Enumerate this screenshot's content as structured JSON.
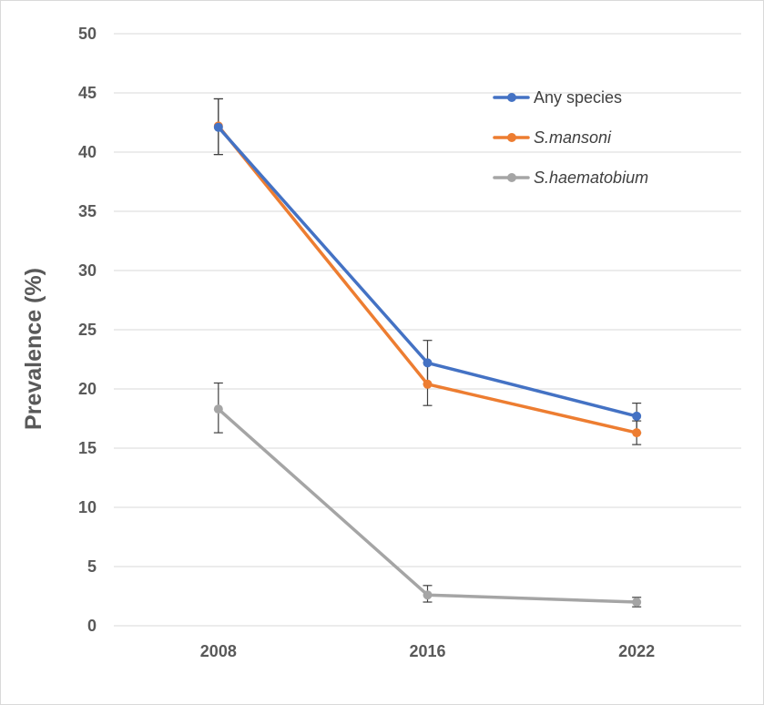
{
  "chart_data": {
    "type": "line",
    "title": "",
    "xlabel": "",
    "ylabel": "Prevalence (%)",
    "ylim": [
      0,
      50
    ],
    "ytick_step": 5,
    "categories": [
      "2008",
      "2016",
      "2022"
    ],
    "grid": true,
    "legend_position": "top-right",
    "series": [
      {
        "name": "Any species",
        "color": "#4472c4",
        "italic": false,
        "values": [
          42.1,
          22.2,
          17.7
        ],
        "error_low": [
          39.8,
          20.4,
          16.3
        ],
        "error_high": [
          44.5,
          24.1,
          18.8
        ]
      },
      {
        "name": "S.mansoni",
        "color": "#ed7d31",
        "italic": true,
        "values": [
          42.2,
          20.4,
          16.3
        ],
        "error_low": [
          39.8,
          18.6,
          15.3
        ],
        "error_high": [
          44.5,
          22.2,
          17.3
        ]
      },
      {
        "name": "S.haematobium",
        "color": "#a5a5a5",
        "italic": true,
        "values": [
          18.3,
          2.6,
          2.0
        ],
        "error_low": [
          16.3,
          2.0,
          1.6
        ],
        "error_high": [
          20.5,
          3.4,
          2.4
        ]
      }
    ]
  }
}
